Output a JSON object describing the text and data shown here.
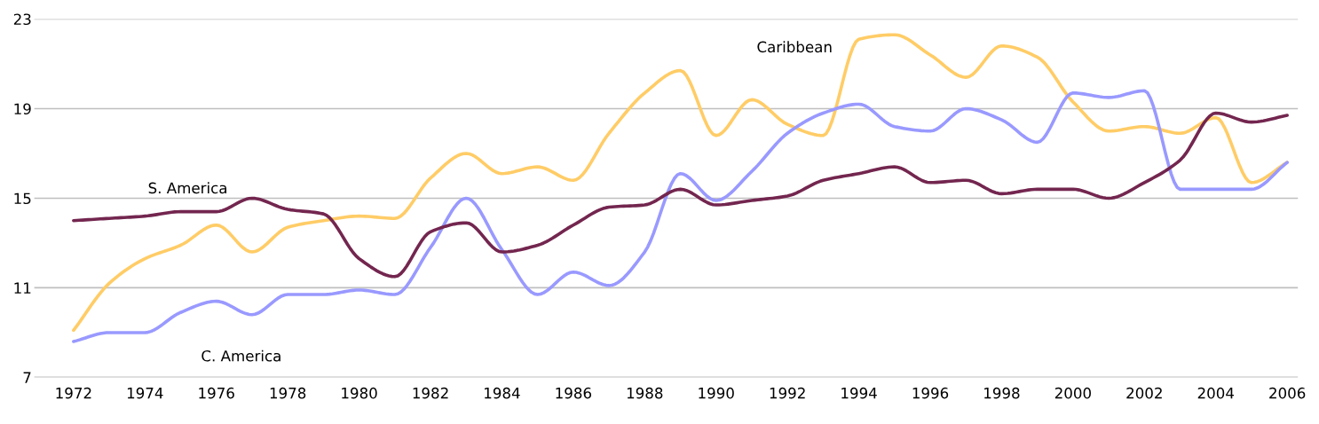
{
  "chart_data": {
    "type": "line",
    "x": [
      1972,
      1973,
      1974,
      1975,
      1976,
      1977,
      1978,
      1979,
      1980,
      1981,
      1982,
      1983,
      1984,
      1985,
      1986,
      1987,
      1988,
      1989,
      1990,
      1991,
      1992,
      1993,
      1994,
      1995,
      1996,
      1997,
      1998,
      1999,
      2000,
      2001,
      2002,
      2003,
      2004,
      2005,
      2006
    ],
    "series": [
      {
        "name": "Caribbean",
        "color": "#ffcc66",
        "values": [
          9.1,
          11.2,
          12.3,
          12.9,
          13.8,
          12.6,
          13.7,
          14.0,
          14.2,
          14.1,
          15.9,
          17.0,
          16.1,
          16.4,
          15.8,
          17.9,
          19.7,
          20.7,
          17.8,
          19.4,
          18.3,
          17.8,
          22.1,
          22.3,
          21.4,
          20.4,
          21.8,
          21.3,
          19.3,
          18.0,
          18.2,
          17.9,
          18.6,
          15.7,
          16.6
        ]
      },
      {
        "name": "C. America",
        "color": "#9999ff",
        "values": [
          8.6,
          9.0,
          9.0,
          9.9,
          10.4,
          9.8,
          10.7,
          10.7,
          10.9,
          10.7,
          12.8,
          15.0,
          12.7,
          10.7,
          11.7,
          11.1,
          12.6,
          16.1,
          14.9,
          16.2,
          17.9,
          18.8,
          19.2,
          18.2,
          18.0,
          19.0,
          18.5,
          17.5,
          19.7,
          19.5,
          19.8,
          15.4,
          15.4,
          15.4,
          16.6
        ]
      },
      {
        "name": "S. America",
        "color": "#73264f",
        "values": [
          14.0,
          14.1,
          14.2,
          14.4,
          14.4,
          15.0,
          14.5,
          14.3,
          12.3,
          11.5,
          13.5,
          13.9,
          12.6,
          12.9,
          13.8,
          14.6,
          14.7,
          15.4,
          14.7,
          14.9,
          15.1,
          15.8,
          16.1,
          16.4,
          15.7,
          15.8,
          15.2,
          15.4,
          15.4,
          15.0,
          15.7,
          16.7,
          18.8,
          18.4,
          18.7
        ]
      }
    ],
    "xlim": [
      1970.9,
      2006.3
    ],
    "xticks": [
      1972,
      1974,
      1976,
      1978,
      1980,
      1982,
      1984,
      1986,
      1988,
      1990,
      1992,
      1994,
      1996,
      1998,
      2000,
      2002,
      2004,
      2006
    ],
    "ylim": [
      7,
      23
    ],
    "yticks": [
      7,
      11,
      15,
      19,
      23
    ],
    "grid": "y",
    "legend": false,
    "marker": "none",
    "line_style": "solid"
  }
}
